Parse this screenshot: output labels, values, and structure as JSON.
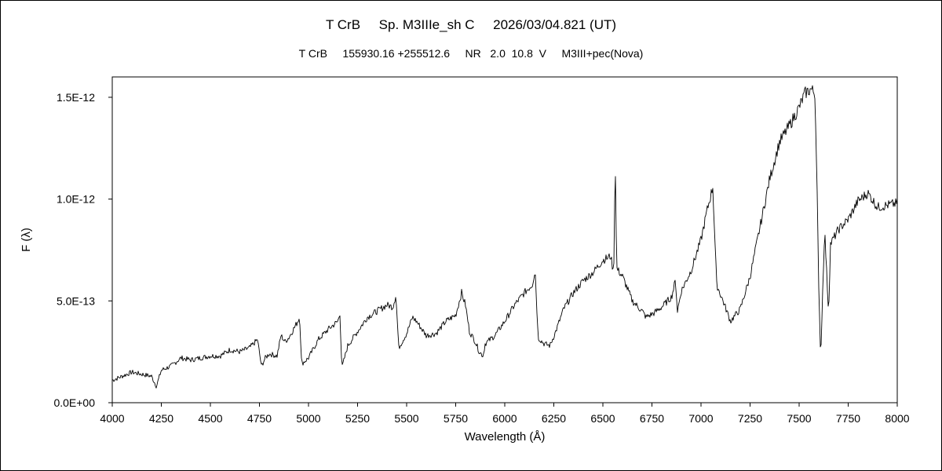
{
  "chart_data": {
    "type": "line",
    "title": "T CrB     Sp. M3IIIe_sh C     2026/03/04.821 (UT)",
    "subtitle": "T CrB     155930.16 +255512.6     NR   2.0  10.8  V     M3III+pec(Nova)",
    "xlabel": "Wavelength (Å)",
    "ylabel": "F (λ)",
    "xlim": [
      4000,
      8000
    ],
    "ylim": [
      0,
      1.6e-12
    ],
    "x_ticks": [
      4000,
      4250,
      4500,
      4750,
      5000,
      5250,
      5500,
      5750,
      6000,
      6250,
      6500,
      6750,
      7000,
      7250,
      7500,
      7750,
      8000
    ],
    "x_tick_labels": [
      "4000",
      "4250",
      "4500",
      "4750",
      "5000",
      "5250",
      "5500",
      "5750",
      "6000",
      "6250",
      "6500",
      "6750",
      "7000",
      "7250",
      "7500",
      "7750",
      "8000"
    ],
    "y_ticks": [
      0,
      5e-13,
      1e-12,
      1.5e-12
    ],
    "y_tick_labels": [
      "0.0E+00",
      "5.0E-13",
      "1.0E-12",
      "1.5E-12"
    ],
    "grid": false,
    "line_color": "#000000",
    "series": [
      {
        "x": [
          4000,
          4050,
          4100,
          4150,
          4200,
          4225,
          4250,
          4300,
          4350,
          4400,
          4450,
          4500,
          4550,
          4600,
          4650,
          4700,
          4740,
          4760,
          4780,
          4800,
          4840,
          4860,
          4880,
          4900,
          4940,
          4955,
          4965,
          5000,
          5050,
          5100,
          5150,
          5160,
          5170,
          5200,
          5250,
          5300,
          5350,
          5400,
          5430,
          5445,
          5460,
          5500,
          5530,
          5550,
          5600,
          5650,
          5700,
          5750,
          5780,
          5800,
          5820,
          5850,
          5870,
          5890,
          5900,
          5950,
          6000,
          6050,
          6100,
          6140,
          6155,
          6170,
          6200,
          6230,
          6260,
          6300,
          6350,
          6400,
          6450,
          6500,
          6540,
          6555,
          6563,
          6570,
          6600,
          6650,
          6700,
          6720,
          6760,
          6800,
          6850,
          6870,
          6880,
          6900,
          6950,
          7000,
          7030,
          7050,
          7060,
          7080,
          7100,
          7120,
          7150,
          7200,
          7250,
          7300,
          7350,
          7400,
          7450,
          7500,
          7530,
          7560,
          7580,
          7590,
          7600,
          7610,
          7620,
          7630,
          7650,
          7660,
          7700,
          7750,
          7800,
          7850,
          7900,
          7950,
          8000
        ],
        "values": [
          1.1e-13,
          1.3e-13,
          1.5e-13,
          1.4e-13,
          1.3e-13,
          8e-14,
          1.6e-13,
          1.8e-13,
          2.2e-13,
          2.1e-13,
          2.2e-13,
          2.3e-13,
          2.3e-13,
          2.6e-13,
          2.5e-13,
          2.7e-13,
          3.1e-13,
          1.8e-13,
          2.2e-13,
          2.4e-13,
          2.3e-13,
          3.3e-13,
          3e-13,
          3.2e-13,
          3.9e-13,
          4.2e-13,
          1.9e-13,
          2.2e-13,
          3.1e-13,
          3.6e-13,
          4e-13,
          4.4e-13,
          1.7e-13,
          2.8e-13,
          3.5e-13,
          4.2e-13,
          4.5e-13,
          4.8e-13,
          4.7e-13,
          5.3e-13,
          2.7e-13,
          3.4e-13,
          4.2e-13,
          4e-13,
          3.3e-13,
          3.4e-13,
          4e-13,
          4.3e-13,
          5.4e-13,
          4.8e-13,
          3.5e-13,
          3e-13,
          2.5e-13,
          2.3e-13,
          2.9e-13,
          3.3e-13,
          4e-13,
          4.8e-13,
          5.4e-13,
          5.8e-13,
          6.5e-13,
          3.2e-13,
          2.9e-13,
          2.8e-13,
          3.5e-13,
          4.6e-13,
          5.4e-13,
          6e-13,
          6.4e-13,
          7e-13,
          7.2e-13,
          6.3e-13,
          1.21e-12,
          6.6e-13,
          6.2e-13,
          5e-13,
          4.5e-13,
          4.2e-13,
          4.4e-13,
          4.7e-13,
          5.2e-13,
          6e-13,
          4.5e-13,
          5.5e-13,
          6.5e-13,
          8e-13,
          9.4e-13,
          1.02e-12,
          1.06e-12,
          5.8e-13,
          5.3e-13,
          4.8e-13,
          4e-13,
          4.6e-13,
          6.2e-13,
          8.6e-13,
          1.1e-12,
          1.28e-12,
          1.36e-12,
          1.45e-12,
          1.52e-12,
          1.54e-12,
          1.52e-12,
          1.15e-12,
          5.5e-13,
          2.2e-13,
          5.5e-13,
          8.5e-13,
          4.4e-13,
          7.8e-13,
          8.5e-13,
          9e-13,
          9.9e-13,
          1.03e-12,
          9.6e-13,
          9.7e-13,
          9.8e-13
        ]
      }
    ]
  }
}
